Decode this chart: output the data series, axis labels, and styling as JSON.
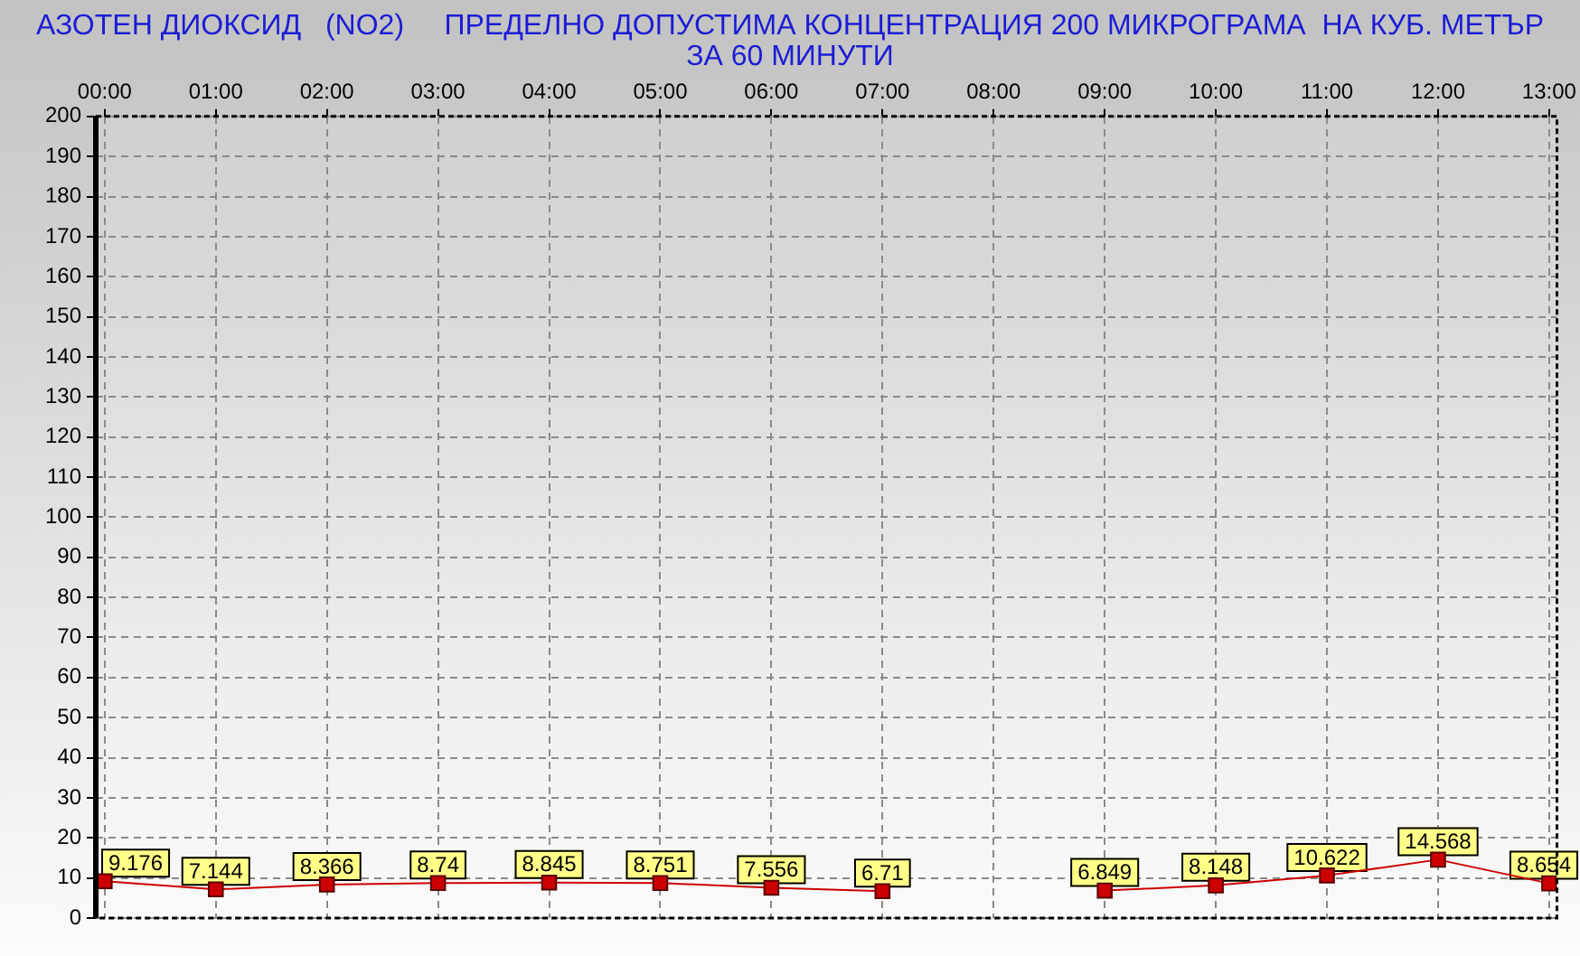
{
  "chart_data": {
    "type": "line",
    "title": "АЗОТЕН ДИОКСИД   (NO2)     ПРЕДЕЛНО ДОПУСТИМА КОНЦЕНТРАЦИЯ 200 МИКРОГРАМА  НА КУБ. МЕТЪР ЗА 60 МИНУТИ",
    "categories": [
      "00:00",
      "01:00",
      "02:00",
      "03:00",
      "04:00",
      "05:00",
      "06:00",
      "07:00",
      "08:00",
      "09:00",
      "10:00",
      "11:00",
      "12:00",
      "13:00"
    ],
    "values": [
      9.176,
      7.144,
      8.366,
      8.74,
      8.845,
      8.751,
      7.556,
      6.71,
      null,
      6.849,
      8.148,
      10.622,
      14.568,
      8.654
    ],
    "color": "#cc0000",
    "marker": "square",
    "line_style": "solid",
    "data_labels": true,
    "ylim": [
      0,
      200
    ],
    "yticks": [
      0,
      10,
      20,
      30,
      40,
      50,
      60,
      70,
      80,
      90,
      100,
      110,
      120,
      130,
      140,
      150,
      160,
      170,
      180,
      190,
      200
    ],
    "grid": true
  }
}
